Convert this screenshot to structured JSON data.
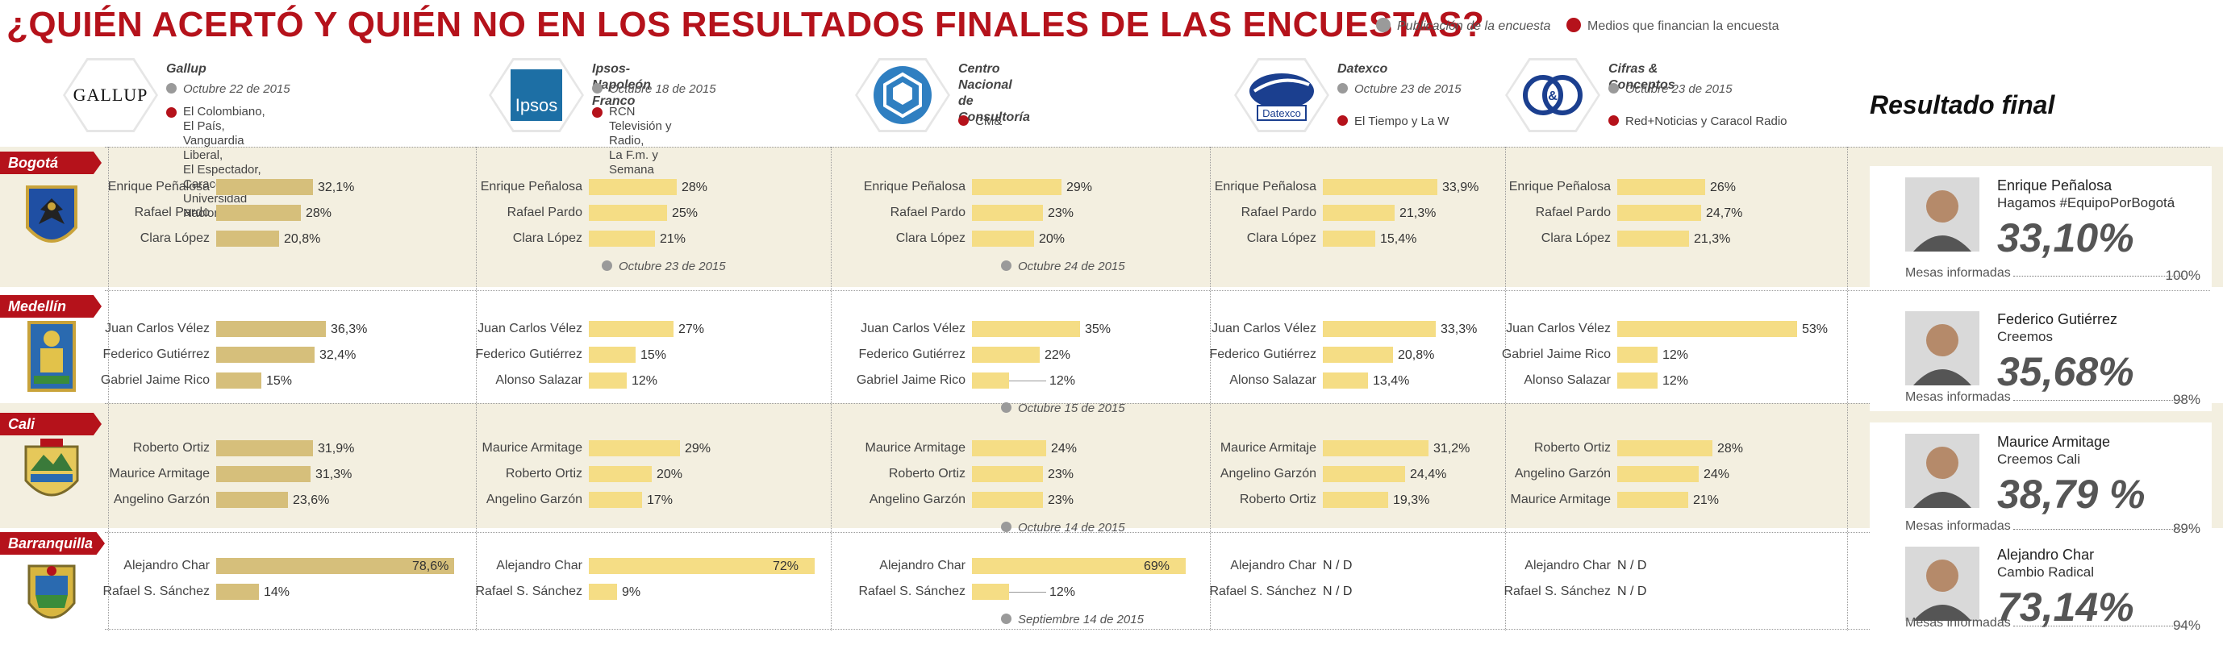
{
  "title": "¿QUIÉN ACERTÓ Y QUIÉN NO EN LOS RESULTADOS FINALES     DE LAS ENCUESTAS?",
  "legend": {
    "publication": "Publicación de la encuesta",
    "funders": "Medios que financian la encuesta"
  },
  "colors": {
    "accent": "#b5121b",
    "bar_primary": "#d6bf7b",
    "bar_secondary": "#f5dd85",
    "band": "#f3efe0"
  },
  "pollsters": [
    {
      "name": "Gallup",
      "date": "Octubre 22 de 2015",
      "media": "El Colombiano, El País, Vanguardia Liberal,\nEl Espectador, Caracol TV y Universidad Nacional",
      "logo_text": "GALLUP",
      "icon": "gallup-logo"
    },
    {
      "name": "Ipsos-Napoleón Franco",
      "date": "Octubre 18 de 2015",
      "media": "RCN Televisión y Radio,\nLa F.m. y Semana",
      "logo_text": "Ipsos",
      "icon": "ipsos-logo"
    },
    {
      "name": "Centro Nacional\nde Consultoría",
      "date": "",
      "media": "CM&",
      "logo_text": "",
      "icon": "cnc-logo"
    },
    {
      "name": "Datexco",
      "date": "Octubre 23 de 2015",
      "media": "El Tiempo y La W",
      "logo_text": "Datexco",
      "icon": "datexco-logo"
    },
    {
      "name": "Cifras & Conceptos",
      "date": "Octubre 23 de 2015",
      "media": "Red+Noticias y Caracol Radio",
      "logo_text": "C&C",
      "icon": "cifras-conceptos-logo"
    }
  ],
  "result_title": "Resultado final",
  "chart_data": [
    {
      "type": "bar",
      "city": "Bogotá",
      "pollster": "Gallup",
      "categories": [
        "Enrique Peñalosa",
        "Rafael Pardo",
        "Clara López"
      ],
      "values": [
        32.1,
        28,
        20.8
      ],
      "labels": [
        "32,1%",
        "28%",
        "20,8%"
      ],
      "note": ""
    },
    {
      "type": "bar",
      "city": "Bogotá",
      "pollster": "Ipsos-Napoleón Franco",
      "categories": [
        "Enrique Peñalosa",
        "Rafael Pardo",
        "Clara López"
      ],
      "values": [
        28,
        25,
        21
      ],
      "labels": [
        "28%",
        "25%",
        "21%"
      ],
      "note": "Octubre 23 de 2015"
    },
    {
      "type": "bar",
      "city": "Bogotá",
      "pollster": "Centro Nacional de Consultoría",
      "categories": [
        "Enrique Peñalosa",
        "Rafael Pardo",
        "Clara López"
      ],
      "values": [
        29,
        23,
        20
      ],
      "labels": [
        "29%",
        "23%",
        "20%"
      ],
      "note": "Octubre 24 de 2015"
    },
    {
      "type": "bar",
      "city": "Bogotá",
      "pollster": "Datexco",
      "categories": [
        "Enrique Peñalosa",
        "Rafael Pardo",
        "Clara López"
      ],
      "values": [
        33.9,
        21.3,
        15.4
      ],
      "labels": [
        "33,9%",
        "21,3%",
        "15,4%"
      ],
      "note": ""
    },
    {
      "type": "bar",
      "city": "Bogotá",
      "pollster": "Cifras & Conceptos",
      "categories": [
        "Enrique Peñalosa",
        "Rafael Pardo",
        "Clara López"
      ],
      "values": [
        26,
        24.7,
        21.3
      ],
      "labels": [
        "26%",
        "24,7%",
        "21,3%"
      ],
      "note": ""
    },
    {
      "type": "bar",
      "city": "Medellín",
      "pollster": "Gallup",
      "categories": [
        "Juan Carlos Vélez",
        "Federico Gutiérrez",
        "Gabriel Jaime Rico"
      ],
      "values": [
        36.3,
        32.4,
        15
      ],
      "labels": [
        "36,3%",
        "32,4%",
        "15%"
      ],
      "note": ""
    },
    {
      "type": "bar",
      "city": "Medellín",
      "pollster": "Ipsos-Napoleón Franco",
      "categories": [
        "Juan Carlos Vélez",
        "Federico Gutiérrez",
        "Alonso Salazar"
      ],
      "values": [
        27,
        15,
        12
      ],
      "labels": [
        "27%",
        "15%",
        "12%"
      ],
      "note": ""
    },
    {
      "type": "bar",
      "city": "Medellín",
      "pollster": "Centro Nacional de Consultoría",
      "categories": [
        "Juan Carlos Vélez",
        "Federico Gutiérrez",
        "Gabriel Jaime Rico"
      ],
      "values": [
        35,
        22,
        12
      ],
      "labels": [
        "35%",
        "22%",
        "12%"
      ],
      "note": "Octubre 15 de 2015"
    },
    {
      "type": "bar",
      "city": "Medellín",
      "pollster": "Datexco",
      "categories": [
        "Juan Carlos Vélez",
        "Federico Gutiérrez",
        "Alonso Salazar"
      ],
      "values": [
        33.3,
        20.8,
        13.4
      ],
      "labels": [
        "33,3%",
        "20,8%",
        "13,4%"
      ],
      "note": ""
    },
    {
      "type": "bar",
      "city": "Medellín",
      "pollster": "Cifras & Conceptos",
      "categories": [
        "Juan Carlos Vélez",
        "Gabriel Jaime Rico",
        "Alonso Salazar"
      ],
      "values": [
        53,
        12,
        12
      ],
      "labels": [
        "53%",
        "12%",
        "12%"
      ],
      "note": ""
    },
    {
      "type": "bar",
      "city": "Cali",
      "pollster": "Gallup",
      "categories": [
        "Roberto Ortiz",
        "Maurice Armitage",
        "Angelino Garzón"
      ],
      "values": [
        31.9,
        31.3,
        23.6
      ],
      "labels": [
        "31,9%",
        "31,3%",
        "23,6%"
      ],
      "note": ""
    },
    {
      "type": "bar",
      "city": "Cali",
      "pollster": "Ipsos-Napoleón Franco",
      "categories": [
        "Maurice Armitage",
        "Roberto Ortiz",
        "Angelino Garzón"
      ],
      "values": [
        29,
        20,
        17
      ],
      "labels": [
        "29%",
        "20%",
        "17%"
      ],
      "note": ""
    },
    {
      "type": "bar",
      "city": "Cali",
      "pollster": "Centro Nacional de Consultoría",
      "categories": [
        "Maurice Armitage",
        "Roberto Ortiz",
        "Angelino Garzón"
      ],
      "values": [
        24,
        23,
        23
      ],
      "labels": [
        "24%",
        "23%",
        "23%"
      ],
      "note": "Octubre 14 de 2015"
    },
    {
      "type": "bar",
      "city": "Cali",
      "pollster": "Datexco",
      "categories": [
        "Maurice Armitaje",
        "Angelino Garzón",
        "Roberto Ortiz"
      ],
      "values": [
        31.2,
        24.4,
        19.3
      ],
      "labels": [
        "31,2%",
        "24,4%",
        "19,3%"
      ],
      "note": ""
    },
    {
      "type": "bar",
      "city": "Cali",
      "pollster": "Cifras & Conceptos",
      "categories": [
        "Roberto Ortiz",
        "Angelino Garzón",
        "Maurice Armitage"
      ],
      "values": [
        28,
        24,
        21
      ],
      "labels": [
        "28%",
        "24%",
        "21%"
      ],
      "note": ""
    },
    {
      "type": "bar",
      "city": "Barranquilla",
      "pollster": "Gallup",
      "categories": [
        "Alejandro Char",
        "Rafael S. Sánchez"
      ],
      "values": [
        78.6,
        14
      ],
      "labels": [
        "78,6%",
        "14%"
      ],
      "note": ""
    },
    {
      "type": "bar",
      "city": "Barranquilla",
      "pollster": "Ipsos-Napoleón Franco",
      "categories": [
        "Alejandro Char",
        "Rafael S. Sánchez"
      ],
      "values": [
        72,
        9
      ],
      "labels": [
        "72%",
        "9%"
      ],
      "note": ""
    },
    {
      "type": "bar",
      "city": "Barranquilla",
      "pollster": "Centro Nacional de Consultoría",
      "categories": [
        "Alejandro Char",
        "Rafael S. Sánchez"
      ],
      "values": [
        69,
        12
      ],
      "labels": [
        "69%",
        "12%"
      ],
      "note": "Septiembre 14 de 2015"
    },
    {
      "type": "bar",
      "city": "Barranquilla",
      "pollster": "Datexco",
      "categories": [
        "Alejandro Char",
        "Rafael S. Sánchez"
      ],
      "values": [
        null,
        null
      ],
      "labels": [
        "N / D",
        "N / D"
      ],
      "note": ""
    },
    {
      "type": "bar",
      "city": "Barranquilla",
      "pollster": "Cifras & Conceptos",
      "categories": [
        "Alejandro Char",
        "Rafael S. Sánchez"
      ],
      "values": [
        null,
        null
      ],
      "labels": [
        "N / D",
        "N / D"
      ],
      "note": ""
    }
  ],
  "cities": [
    "Bogotá",
    "Medellín",
    "Cali",
    "Barranquilla"
  ],
  "results": [
    {
      "city": "Bogotá",
      "winner": "Enrique Peñalosa",
      "party": "Hagamos #EquipoPorBogotá",
      "pct": "33,10%",
      "mesas_label": "Mesas informadas",
      "mesas": "100%"
    },
    {
      "city": "Medellín",
      "winner": "Federico Gutiérrez",
      "party": "Creemos",
      "pct": "35,68%",
      "mesas_label": "Mesas informadas",
      "mesas": "98%"
    },
    {
      "city": "Cali",
      "winner": "Maurice Armitage",
      "party": "Creemos Cali",
      "pct": "38,79 %",
      "mesas_label": "Mesas informadas",
      "mesas": "89%"
    },
    {
      "city": "Barranquilla",
      "winner": "Alejandro Char",
      "party": "Cambio Radical",
      "pct": "73,14%",
      "mesas_label": "Mesas informadas",
      "mesas": "94%"
    }
  ]
}
